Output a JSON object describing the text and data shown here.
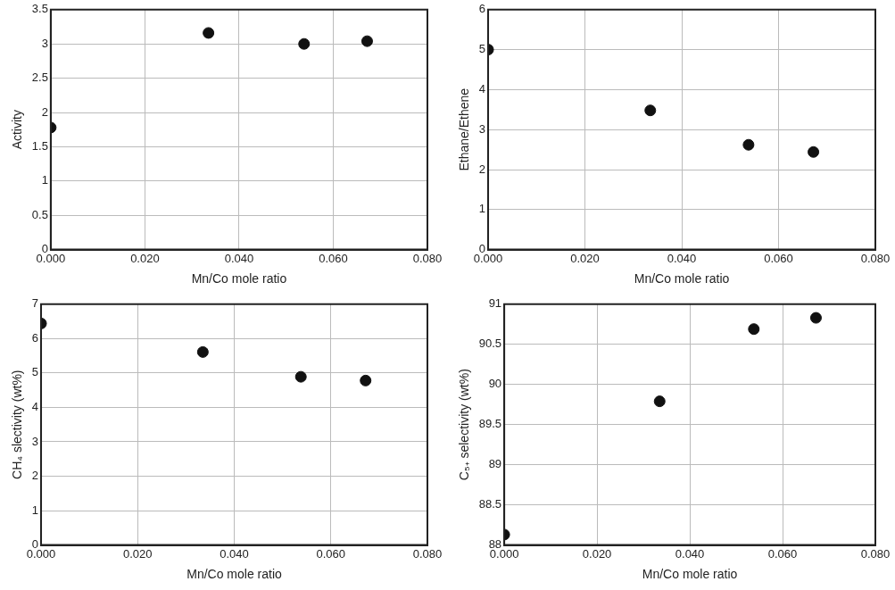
{
  "chart_data": [
    {
      "type": "scatter",
      "xlabel": "Mn/Co mole ratio",
      "ylabel": "Activity",
      "x": [
        0,
        0.0335,
        0.0538,
        0.0672
      ],
      "values": [
        1.78,
        3.16,
        3.0,
        3.04
      ],
      "color": "#111111",
      "marker": "circle",
      "grid": true,
      "xlim": [
        0,
        0.08
      ],
      "xticks": [
        {
          "value": 0,
          "label": "0.000"
        },
        {
          "value": 0.02,
          "label": "0.020"
        },
        {
          "value": 0.04,
          "label": "0.040"
        },
        {
          "value": 0.06,
          "label": "0.060"
        },
        {
          "value": 0.08,
          "label": "0.080"
        }
      ],
      "ylim": [
        0,
        3.5
      ],
      "yticks": [
        0,
        0.5,
        1,
        1.5,
        2,
        2.5,
        3,
        3.5
      ]
    },
    {
      "type": "scatter",
      "xlabel": "Mn/Co mole ratio",
      "ylabel": "Ethane/Ethene",
      "x": [
        0,
        0.0335,
        0.0538,
        0.0672
      ],
      "values": [
        5.0,
        3.48,
        2.62,
        2.44
      ],
      "color": "#111111",
      "marker": "circle",
      "grid": true,
      "xlim": [
        0,
        0.08
      ],
      "xticks": [
        {
          "value": 0,
          "label": "0.000"
        },
        {
          "value": 0.02,
          "label": "0.020"
        },
        {
          "value": 0.04,
          "label": "0.040"
        },
        {
          "value": 0.06,
          "label": "0.060"
        },
        {
          "value": 0.08,
          "label": "0.080"
        }
      ],
      "ylim": [
        0,
        6
      ],
      "yticks": [
        0,
        1,
        2,
        3,
        4,
        5,
        6
      ]
    },
    {
      "type": "scatter",
      "xlabel": "Mn/Co mole ratio",
      "ylabel": "CH₄ slectivity (wt%)",
      "x": [
        0,
        0.0335,
        0.0538,
        0.0672
      ],
      "values": [
        6.44,
        5.61,
        4.89,
        4.78
      ],
      "color": "#111111",
      "marker": "circle",
      "grid": true,
      "xlim": [
        0,
        0.08
      ],
      "xticks": [
        {
          "value": 0,
          "label": "0.000"
        },
        {
          "value": 0.02,
          "label": "0.020"
        },
        {
          "value": 0.04,
          "label": "0.040"
        },
        {
          "value": 0.06,
          "label": "0.060"
        },
        {
          "value": 0.08,
          "label": "0.080"
        }
      ],
      "ylim": [
        0,
        7
      ],
      "yticks": [
        0,
        1,
        2,
        3,
        4,
        5,
        6,
        7
      ]
    },
    {
      "type": "scatter",
      "xlabel": "Mn/Co mole ratio",
      "ylabel": "C₅₊ selectivity (wt%)",
      "x": [
        0,
        0.0335,
        0.0538,
        0.0672
      ],
      "values": [
        88.13,
        89.79,
        90.69,
        90.83
      ],
      "color": "#111111",
      "marker": "circle",
      "grid": true,
      "xlim": [
        0,
        0.08
      ],
      "xticks": [
        {
          "value": 0,
          "label": "0.000"
        },
        {
          "value": 0.02,
          "label": "0.020"
        },
        {
          "value": 0.04,
          "label": "0.040"
        },
        {
          "value": 0.06,
          "label": "0.060"
        },
        {
          "value": 0.08,
          "label": "0.080"
        }
      ],
      "ylim": [
        88,
        91
      ],
      "yticks": [
        88,
        88.5,
        89,
        89.5,
        90,
        90.5,
        91
      ]
    }
  ]
}
